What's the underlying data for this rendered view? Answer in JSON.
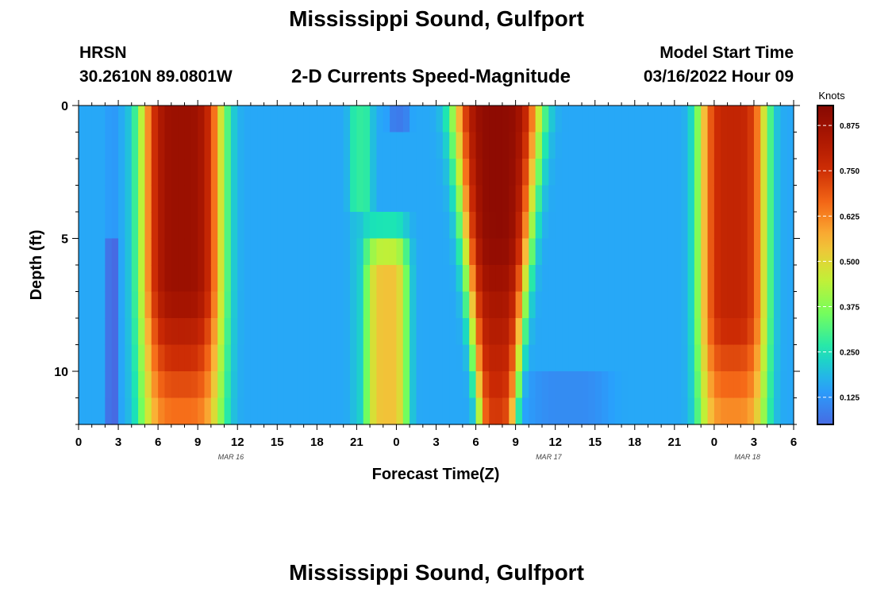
{
  "header": {
    "title": "Mississippi Sound, Gulfport",
    "station": "HRSN",
    "coords": "30.2610N  89.0801W",
    "subtitle": "2-D Currents Speed-Magnitude",
    "model_label": "Model Start Time",
    "model_time": "03/16/2022 Hour 09"
  },
  "footer": {
    "title": "Mississippi Sound, Gulfport"
  },
  "chart_data": {
    "type": "heatmap",
    "title": "2-D Currents Speed-Magnitude",
    "xlabel": "Forecast Time(Z)",
    "ylabel": "Depth (ft)",
    "xlim": [
      0,
      54
    ],
    "ylim": [
      0,
      12
    ],
    "y_reversed": true,
    "x_tick_labels": [
      "0",
      "3",
      "6",
      "9",
      "12",
      "15",
      "18",
      "21",
      "0",
      "3",
      "6",
      "9",
      "12",
      "15",
      "18",
      "21",
      "0",
      "3",
      "6"
    ],
    "x_tick_values": [
      0,
      3,
      6,
      9,
      12,
      15,
      18,
      21,
      24,
      27,
      30,
      33,
      36,
      39,
      42,
      45,
      48,
      51,
      54
    ],
    "y_tick_labels": [
      "0",
      "5",
      "10"
    ],
    "y_tick_values": [
      0,
      5,
      10
    ],
    "date_labels": [
      {
        "text": "MAR 16",
        "x": 11.5
      },
      {
        "text": "MAR 17",
        "x": 35.5
      },
      {
        "text": "MAR 18",
        "x": 50.5
      }
    ],
    "colorbar": {
      "label": "Knots",
      "min": 0.05,
      "max": 0.93,
      "ticks": [
        "0.875",
        "0.750",
        "0.625",
        "0.500",
        "0.375",
        "0.250",
        "0.125"
      ],
      "tick_values": [
        0.875,
        0.75,
        0.625,
        0.5,
        0.375,
        0.25,
        0.125
      ],
      "colormap": "turbo"
    },
    "speed_profile_hours": [
      0,
      1,
      2,
      2.5,
      3,
      3.5,
      4,
      4.5,
      5,
      6,
      8,
      9,
      10,
      10.5,
      11,
      11.5,
      12,
      13,
      15,
      18,
      21,
      22,
      23,
      24,
      25,
      26,
      27,
      27.5,
      28,
      29,
      30,
      31,
      32,
      33,
      34,
      35,
      35.5,
      36,
      37,
      39,
      42,
      45,
      46,
      47,
      48,
      49,
      50,
      51,
      52,
      53,
      54
    ],
    "notes": "Current speed magnitude (knots) vs forecast hour and depth; peaks near hours 6-10, 28-35 and 47-51."
  }
}
